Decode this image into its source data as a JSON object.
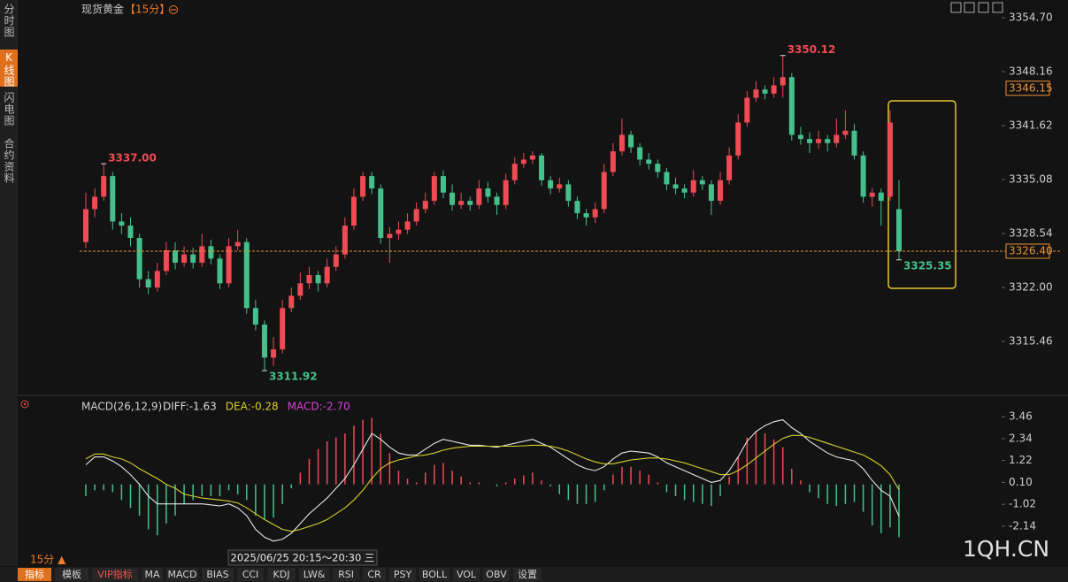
{
  "ui": {
    "sidebar": [
      "分时图",
      "K线图",
      "闪电图",
      "合约资料"
    ],
    "toolbar": [
      "指标",
      "模板",
      "VIP指标",
      "MA",
      "MACD",
      "BIAS",
      "CCI",
      "KDJ",
      "LW&",
      "RSI",
      "CR",
      "PSY",
      "BOLL",
      "VOL",
      "OBV",
      "设置"
    ],
    "interval": "15分 ▲",
    "date_tip": "2025/06/25 20:15～20:30 三",
    "watermark": "1QH.CN"
  },
  "chart_data": [
    {
      "type": "candlestick",
      "title": "现货黄金",
      "period": "【15分】",
      "up_color": "#ee4b54",
      "down_color": "#45c08a",
      "ylim": [
        3309.67,
        3355.99
      ],
      "yticks": [
        {
          "value": 3354.7,
          "label": "3354.70"
        },
        3348.16,
        3341.62,
        3335.08,
        3328.54,
        {
          "value": 3322,
          "label": "3322.00"
        },
        3315.46
      ],
      "extremes": [
        {
          "value": 3337,
          "label": "3337.00"
        },
        3350.12,
        3311.92,
        3325.35
      ],
      "last_price": {
        "value": 3326.4,
        "label": "3326.40"
      },
      "marker_price": 3346.15,
      "candles": [
        [
          3327.5,
          3333.5,
          3326.8,
          3331.5
        ],
        [
          3331.5,
          3334,
          3330.5,
          3333
        ],
        [
          3333,
          3337,
          3332.5,
          3335.5
        ],
        [
          3335.5,
          3336,
          3329,
          3330
        ],
        [
          3330,
          3331,
          3328.5,
          3329.5
        ],
        [
          3329.5,
          3330.5,
          3327,
          3328
        ],
        [
          3328,
          3328.5,
          3322,
          3323
        ],
        [
          3323,
          3324,
          3321.2,
          3322
        ],
        [
          3322,
          3325,
          3321.5,
          3324
        ],
        [
          3324,
          3327.5,
          3323.5,
          3326.5
        ],
        [
          3326.5,
          3327.5,
          3324.2,
          3325
        ],
        [
          3325,
          3327,
          3324.5,
          3326
        ],
        [
          3326,
          3326.8,
          3324.3,
          3325
        ],
        [
          3325,
          3328.5,
          3324.5,
          3327
        ],
        [
          3327,
          3327.8,
          3324.8,
          3325.5
        ],
        [
          3325.5,
          3326,
          3321.8,
          3322.5
        ],
        [
          3322.5,
          3328,
          3322,
          3327
        ],
        [
          3327,
          3329,
          3326.5,
          3327.5
        ],
        [
          3327.5,
          3328,
          3318.8,
          3319.5
        ],
        [
          3319.5,
          3320.5,
          3316.8,
          3317.5
        ],
        [
          3317.5,
          3318,
          3311.92,
          3313.5
        ],
        [
          3313.5,
          3316,
          3312.5,
          3314.5
        ],
        [
          3314.5,
          3320.5,
          3314,
          3319.5
        ],
        [
          3319.5,
          3322,
          3319,
          3321
        ],
        [
          3321,
          3323.8,
          3320.5,
          3322.5
        ],
        [
          3322.5,
          3324.5,
          3321.8,
          3323.5
        ],
        [
          3323.5,
          3324,
          3321.5,
          3322.5
        ],
        [
          3322.5,
          3325.5,
          3322,
          3324.5
        ],
        [
          3324.5,
          3327,
          3324,
          3326
        ],
        [
          3326,
          3330.5,
          3325.5,
          3329.5
        ],
        [
          3329.5,
          3334,
          3329,
          3333
        ],
        [
          3333,
          3336,
          3332.5,
          3335.5
        ],
        [
          3335.5,
          3336,
          3333.3,
          3334
        ],
        [
          3334,
          3334.5,
          3327.3,
          3328
        ],
        [
          3328,
          3329.3,
          3325,
          3328.5
        ],
        [
          3328.5,
          3330,
          3327.8,
          3329
        ],
        [
          3329,
          3331,
          3328.5,
          3330
        ],
        [
          3330,
          3332.3,
          3329.5,
          3331.5
        ],
        [
          3331.5,
          3333.5,
          3331,
          3332.5
        ],
        [
          3332.5,
          3336,
          3332,
          3335.5
        ],
        [
          3335.5,
          3336.2,
          3332.8,
          3333.5
        ],
        [
          3333.5,
          3334.5,
          3331.3,
          3332
        ],
        [
          3332,
          3333.5,
          3331.5,
          3332.5
        ],
        [
          3332.5,
          3333,
          3331.3,
          3332
        ],
        [
          3332,
          3335,
          3331.5,
          3334
        ],
        [
          3334,
          3334.8,
          3332.3,
          3333
        ],
        [
          3333,
          3333.5,
          3330.8,
          3332
        ],
        [
          3332,
          3335.8,
          3331.5,
          3335
        ],
        [
          3335,
          3337.8,
          3334.5,
          3337
        ],
        [
          3337,
          3338.3,
          3336.5,
          3337.5
        ],
        [
          3337.5,
          3338.5,
          3337,
          3338
        ],
        [
          3338,
          3338.3,
          3334.3,
          3335
        ],
        [
          3335,
          3335.5,
          3333.3,
          3334
        ],
        [
          3334,
          3335.3,
          3333.5,
          3334.5
        ],
        [
          3334.5,
          3335,
          3331.8,
          3332.5
        ],
        [
          3332.5,
          3333,
          3330.3,
          3331
        ],
        [
          3331,
          3331.5,
          3329.5,
          3330.5
        ],
        [
          3330.5,
          3332.3,
          3329.8,
          3331.5
        ],
        [
          3331.5,
          3337,
          3331,
          3336
        ],
        [
          3336,
          3339.5,
          3335.5,
          3338.5
        ],
        [
          3338.5,
          3342.5,
          3338,
          3340.5
        ],
        [
          3340.5,
          3341,
          3338.3,
          3339
        ],
        [
          3339,
          3339.5,
          3336.8,
          3337.5
        ],
        [
          3337.5,
          3338.3,
          3336.3,
          3337
        ],
        [
          3337,
          3337.5,
          3335.3,
          3336
        ],
        [
          3336,
          3336.5,
          3333.8,
          3334.5
        ],
        [
          3334.5,
          3335.3,
          3333.3,
          3334
        ],
        [
          3334,
          3334.5,
          3332.8,
          3333.5
        ],
        [
          3333.5,
          3336.2,
          3333,
          3335
        ],
        [
          3335,
          3335.5,
          3333.8,
          3334.5
        ],
        [
          3334.5,
          3335,
          3330.8,
          3332.5
        ],
        [
          3332.5,
          3336,
          3332,
          3335
        ],
        [
          3335,
          3339,
          3334.5,
          3338
        ],
        [
          3338,
          3343,
          3337.5,
          3342
        ],
        [
          3342,
          3345.8,
          3341.5,
          3345
        ],
        [
          3345,
          3347,
          3344.5,
          3346
        ],
        [
          3346,
          3346.5,
          3344.8,
          3345.5
        ],
        [
          3345.5,
          3347.5,
          3345,
          3346.5
        ],
        [
          3346.5,
          3350.12,
          3345,
          3347.5
        ],
        [
          3347.5,
          3348,
          3339.8,
          3340.5
        ],
        [
          3340.5,
          3341.5,
          3339.3,
          3340
        ],
        [
          3340,
          3340.8,
          3338.3,
          3339.5
        ],
        [
          3339.5,
          3341,
          3338.8,
          3340
        ],
        [
          3340,
          3340.5,
          3338.5,
          3339.5
        ],
        [
          3339.5,
          3342.5,
          3339,
          3340.5
        ],
        [
          3340.5,
          3343.5,
          3340,
          3341
        ],
        [
          3341,
          3341.8,
          3337.5,
          3338
        ],
        [
          3338,
          3338.5,
          3332.3,
          3333
        ],
        [
          3333,
          3334,
          3331.8,
          3333.5
        ],
        [
          3333.5,
          3334,
          3329.5,
          3332.5
        ],
        [
          3333,
          3343.5,
          3332.5,
          3342
        ],
        [
          3331.5,
          3335,
          3325.35,
          3326.4
        ]
      ]
    },
    {
      "type": "macd",
      "header": "MACD(26,12,9)",
      "legend": [
        {
          "label": "DIFF:-1.63",
          "color": "#dcdcdc"
        },
        {
          "label": "DEA:-0.28",
          "color": "#d8cf2c"
        },
        {
          "label": "MACD:-2.70",
          "color": "#d545d5"
        }
      ],
      "ylim": [
        -2.91,
        3.87
      ],
      "yticks": [
        3.46,
        2.34,
        1.22,
        {
          "value": 0.1,
          "label": "0.10"
        },
        -1.02,
        -2.14
      ],
      "series": [
        {
          "color": "#e8e8e8",
          "values": [
            1.0,
            1.4,
            1.4,
            1.2,
            0.9,
            0.5,
            0.0,
            -0.6,
            -1.0,
            -1.0,
            -1.0,
            -1.0,
            -1.0,
            -1.0,
            -1.05,
            -1.1,
            -1.0,
            -1.2,
            -1.6,
            -2.3,
            -2.7,
            -2.9,
            -2.8,
            -2.5,
            -2.0,
            -1.5,
            -1.1,
            -0.7,
            -0.2,
            0.3,
            1.0,
            1.8,
            2.6,
            2.3,
            1.9,
            1.6,
            1.5,
            1.5,
            1.8,
            2.1,
            2.3,
            2.2,
            2.1,
            2.0,
            2.0,
            1.95,
            1.9,
            2.0,
            2.1,
            2.2,
            2.3,
            2.1,
            1.9,
            1.6,
            1.3,
            1.0,
            0.8,
            0.7,
            0.9,
            1.3,
            1.6,
            1.7,
            1.65,
            1.6,
            1.4,
            1.1,
            0.9,
            0.7,
            0.5,
            0.3,
            0.1,
            0.2,
            0.7,
            1.4,
            2.2,
            2.7,
            3.0,
            3.2,
            3.3,
            2.9,
            2.6,
            2.2,
            1.9,
            1.6,
            1.4,
            1.3,
            1.2,
            0.8,
            0.2,
            -0.3,
            -0.6,
            -1.63
          ]
        },
        {
          "color": "#d8cf2c",
          "values": [
            1.3,
            1.55,
            1.55,
            1.4,
            1.3,
            1.1,
            0.8,
            0.55,
            0.3,
            0.0,
            -0.2,
            -0.5,
            -0.6,
            -0.7,
            -0.75,
            -0.8,
            -0.85,
            -0.95,
            -1.2,
            -1.5,
            -1.8,
            -2.05,
            -2.3,
            -2.4,
            -2.3,
            -2.15,
            -2.0,
            -1.8,
            -1.5,
            -1.2,
            -0.8,
            -0.3,
            0.3,
            0.8,
            1.1,
            1.25,
            1.35,
            1.45,
            1.5,
            1.6,
            1.75,
            1.85,
            1.9,
            1.95,
            1.95,
            1.95,
            1.95,
            1.95,
            1.95,
            1.97,
            2.0,
            2.0,
            1.95,
            1.85,
            1.7,
            1.5,
            1.3,
            1.15,
            1.05,
            1.05,
            1.15,
            1.25,
            1.3,
            1.35,
            1.35,
            1.3,
            1.2,
            1.1,
            0.95,
            0.8,
            0.65,
            0.5,
            0.5,
            0.7,
            1.0,
            1.35,
            1.7,
            2.05,
            2.35,
            2.5,
            2.5,
            2.4,
            2.25,
            2.1,
            1.95,
            1.8,
            1.65,
            1.5,
            1.25,
            0.95,
            0.5,
            -0.28
          ]
        }
      ],
      "histogram": {
        "up_color": "#ee4b54",
        "down_color": "#45c08a",
        "values": [
          -0.6,
          -0.3,
          -0.3,
          -0.4,
          -0.8,
          -1.2,
          -1.6,
          -2.3,
          -2.6,
          -2.0,
          -1.6,
          -1.0,
          -0.8,
          -0.6,
          -0.6,
          -0.6,
          -0.3,
          -0.5,
          -0.8,
          -1.6,
          -1.8,
          -1.7,
          -1.0,
          -0.2,
          0.6,
          1.3,
          1.8,
          2.2,
          2.4,
          2.6,
          3.0,
          3.3,
          3.4,
          2.6,
          1.6,
          0.7,
          0.3,
          0.1,
          0.6,
          1.0,
          1.1,
          0.7,
          0.4,
          0.1,
          0.1,
          0.0,
          -0.1,
          0.1,
          0.3,
          0.46,
          0.6,
          0.2,
          -0.1,
          -0.5,
          -0.8,
          -1.0,
          -1.0,
          -0.9,
          -0.3,
          0.5,
          0.9,
          0.9,
          0.7,
          0.5,
          0.1,
          -0.4,
          -0.6,
          -0.8,
          -0.9,
          -1.0,
          -1.1,
          -0.6,
          0.4,
          1.4,
          2.4,
          2.7,
          2.6,
          2.3,
          1.9,
          0.8,
          0.2,
          -0.4,
          -0.7,
          -1.0,
          -1.1,
          -1.0,
          -0.9,
          -1.4,
          -2.1,
          -2.5,
          -2.2,
          -2.7
        ]
      }
    }
  ]
}
